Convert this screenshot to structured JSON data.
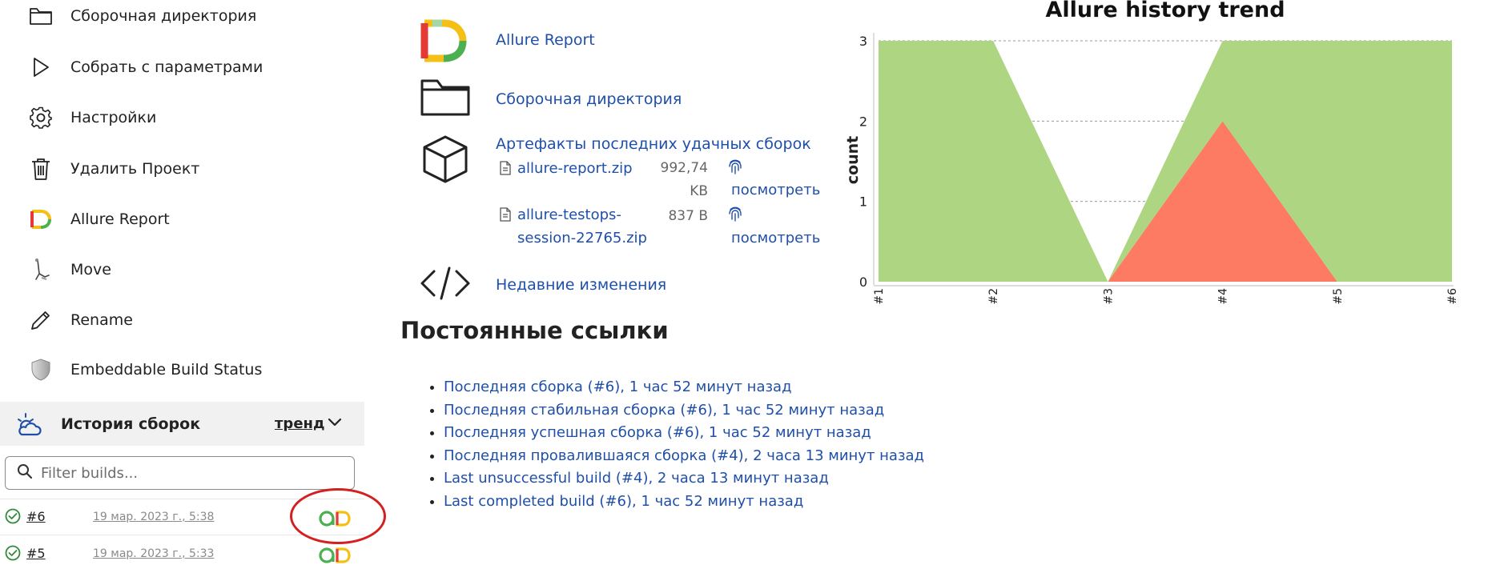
{
  "sidebar": {
    "items": [
      {
        "label": "Сборочная директория",
        "icon": "folder-icon"
      },
      {
        "label": "Собрать с параметрами",
        "icon": "play-icon"
      },
      {
        "label": "Настройки",
        "icon": "gear-icon"
      },
      {
        "label": "Удалить Проект",
        "icon": "trash-icon"
      },
      {
        "label": "Allure Report",
        "icon": "allure-logo-icon"
      },
      {
        "label": "Move",
        "icon": "move-icon"
      },
      {
        "label": "Rename",
        "icon": "pencil-icon"
      },
      {
        "label": "Embeddable Build Status",
        "icon": "shield-icon"
      }
    ]
  },
  "history": {
    "title": "История сборок",
    "trend_label": "тренд",
    "filter_placeholder": "Filter builds...",
    "builds": [
      {
        "number": "#6",
        "date": "19 мар. 2023 г., 5:38",
        "status": "success"
      },
      {
        "number": "#5",
        "date": "19 мар. 2023 г., 5:33",
        "status": "success"
      }
    ]
  },
  "main": {
    "allure_report_label": "Allure Report",
    "workspace_label": "Сборочная директория",
    "artifacts_title": "Артефакты последних удачных сборок",
    "artifacts": [
      {
        "name_line1": "allure-report.zip",
        "name_line2": "",
        "size_line1": "992,74",
        "size_line2": "KB",
        "view_label": "посмотреть"
      },
      {
        "name_line1": "allure-testops-",
        "name_line2": "session-22765.zip",
        "size_line1": "837 B",
        "size_line2": "",
        "view_label": "посмотреть"
      }
    ],
    "changes_label": "Недавние изменения",
    "permalinks_title": "Постоянные ссылки",
    "permalinks": [
      "Последняя сборка (#6), 1 час 52 минут назад",
      "Последняя стабильная сборка (#6), 1 час 52 минут назад",
      "Последняя успешная сборка (#6), 1 час 52 минут назад",
      "Последняя провалившаяся сборка (#4), 2 часа 13 минут назад",
      "Last unsuccessful build (#4), 2 часа 13 минут назад",
      "Last completed build (#6), 1 час 52 минут назад"
    ]
  },
  "colors": {
    "link": "#1f4fa8",
    "passed": "#aed581",
    "failed": "#fd7a63",
    "success_icon": "#2e8b3a",
    "annotation": "#d42020"
  },
  "chart_data": {
    "type": "area",
    "title": "Allure history trend",
    "xlabel": "",
    "ylabel": "count",
    "categories": [
      "#1",
      "#2",
      "#3",
      "#4",
      "#5",
      "#6"
    ],
    "yticks": [
      0,
      1,
      2,
      3
    ],
    "ylim": [
      0,
      3
    ],
    "grid": true,
    "stacked": true,
    "series": [
      {
        "key": "failed",
        "values": [
          0,
          0,
          0,
          2,
          0,
          0
        ],
        "color": "#fd7a63"
      },
      {
        "key": "passed",
        "values": [
          3,
          3,
          0,
          1,
          3,
          3
        ],
        "color": "#aed581"
      }
    ]
  }
}
